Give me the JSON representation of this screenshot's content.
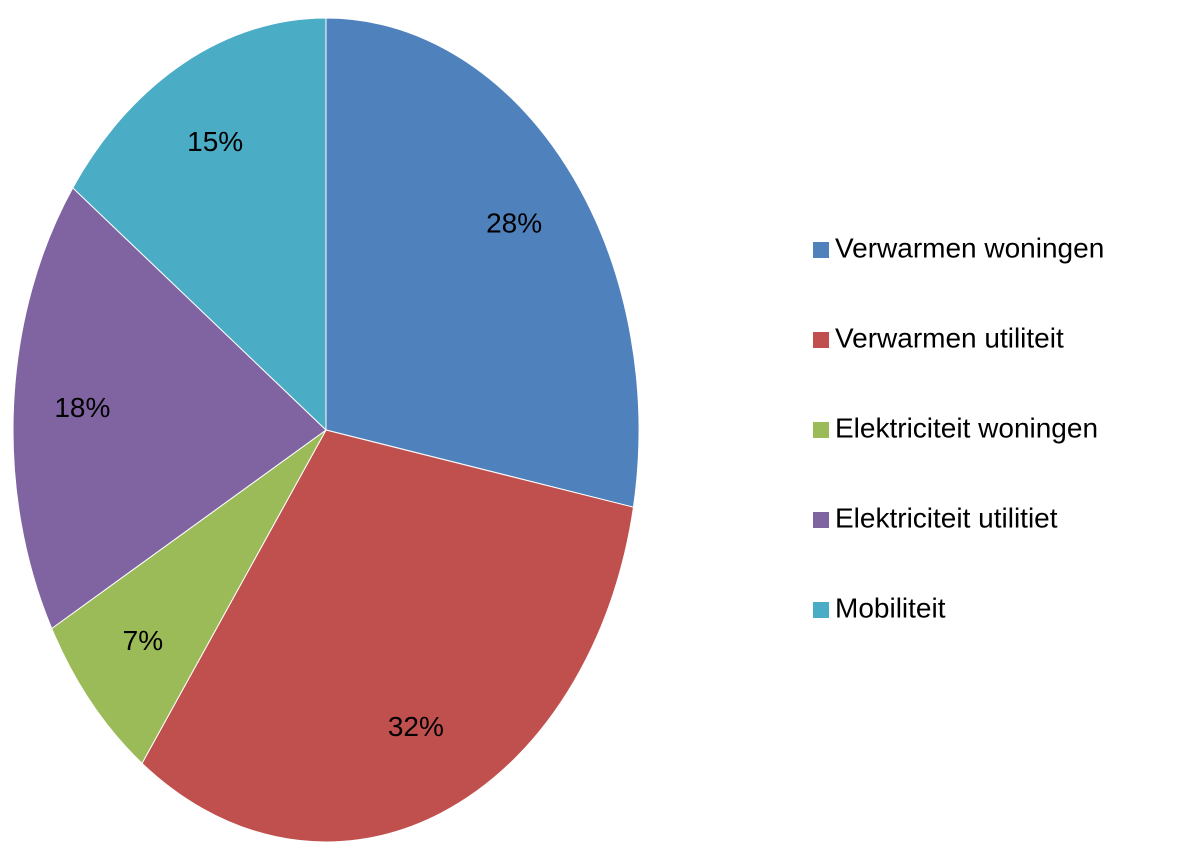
{
  "chart_data": {
    "type": "pie",
    "categories": [
      "Verwarmen woningen",
      "Verwarmen utiliteit",
      "Elektriciteit woningen",
      "Elektriciteit utilitiet",
      "Mobiliteit"
    ],
    "values": [
      28,
      32,
      7,
      18,
      15
    ],
    "value_labels": [
      "28%",
      "32%",
      "7%",
      "18%",
      "15%"
    ],
    "colors": [
      "#4f81bd",
      "#c0504d",
      "#9bbb59",
      "#8064a2",
      "#4bacc6"
    ],
    "legend": "right"
  }
}
